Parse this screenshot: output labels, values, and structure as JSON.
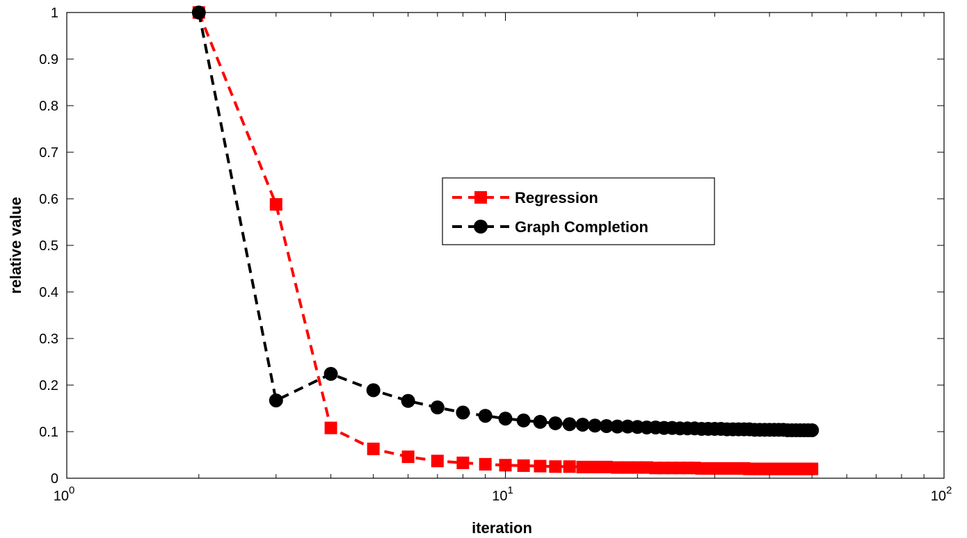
{
  "chart_data": {
    "type": "line",
    "title": "",
    "xlabel": "iteration",
    "ylabel": "relative value",
    "xscale": "log",
    "xlim": [
      1,
      100
    ],
    "ylim": [
      0,
      1
    ],
    "x_ticks": [
      {
        "value": 1,
        "base": "10",
        "exp": "0"
      },
      {
        "value": 10,
        "base": "10",
        "exp": "1"
      },
      {
        "value": 100,
        "base": "10",
        "exp": "2"
      }
    ],
    "y_ticks": [
      {
        "value": 0,
        "label": "0"
      },
      {
        "value": 0.1,
        "label": "0.1"
      },
      {
        "value": 0.2,
        "label": "0.2"
      },
      {
        "value": 0.3,
        "label": "0.3"
      },
      {
        "value": 0.4,
        "label": "0.4"
      },
      {
        "value": 0.5,
        "label": "0.5"
      },
      {
        "value": 0.6,
        "label": "0.6"
      },
      {
        "value": 0.7,
        "label": "0.7"
      },
      {
        "value": 0.8,
        "label": "0.8"
      },
      {
        "value": 0.9,
        "label": "0.9"
      },
      {
        "value": 1,
        "label": "1"
      }
    ],
    "grid": false,
    "legend_position": "center",
    "x": [
      2,
      3,
      4,
      5,
      6,
      7,
      8,
      9,
      10,
      11,
      12,
      13,
      14,
      15,
      16,
      17,
      18,
      19,
      20,
      21,
      22,
      23,
      24,
      25,
      26,
      27,
      28,
      29,
      30,
      31,
      32,
      33,
      34,
      35,
      36,
      37,
      38,
      39,
      40,
      41,
      42,
      43,
      44,
      45,
      46,
      47,
      48,
      49,
      50
    ],
    "series": [
      {
        "name": "Regression",
        "color": "#ff0000",
        "marker": "square",
        "line_style": "dashed",
        "values": [
          1.0,
          0.588,
          0.108,
          0.063,
          0.046,
          0.037,
          0.033,
          0.03,
          0.028,
          0.027,
          0.026,
          0.025,
          0.025,
          0.024,
          0.024,
          0.024,
          0.023,
          0.023,
          0.023,
          0.023,
          0.022,
          0.022,
          0.022,
          0.022,
          0.022,
          0.022,
          0.021,
          0.021,
          0.021,
          0.021,
          0.021,
          0.021,
          0.021,
          0.021,
          0.02,
          0.02,
          0.02,
          0.02,
          0.02,
          0.02,
          0.02,
          0.02,
          0.02,
          0.02,
          0.02,
          0.02,
          0.02,
          0.02,
          0.02
        ]
      },
      {
        "name": "Graph Completion",
        "color": "#000000",
        "marker": "circle",
        "line_style": "dashed",
        "values": [
          1.0,
          0.167,
          0.224,
          0.189,
          0.166,
          0.152,
          0.141,
          0.134,
          0.128,
          0.124,
          0.121,
          0.118,
          0.116,
          0.115,
          0.113,
          0.112,
          0.111,
          0.111,
          0.11,
          0.109,
          0.109,
          0.108,
          0.108,
          0.107,
          0.107,
          0.107,
          0.106,
          0.106,
          0.106,
          0.106,
          0.105,
          0.105,
          0.105,
          0.105,
          0.105,
          0.104,
          0.104,
          0.104,
          0.104,
          0.104,
          0.104,
          0.104,
          0.103,
          0.103,
          0.103,
          0.103,
          0.103,
          0.103,
          0.103
        ]
      }
    ]
  }
}
